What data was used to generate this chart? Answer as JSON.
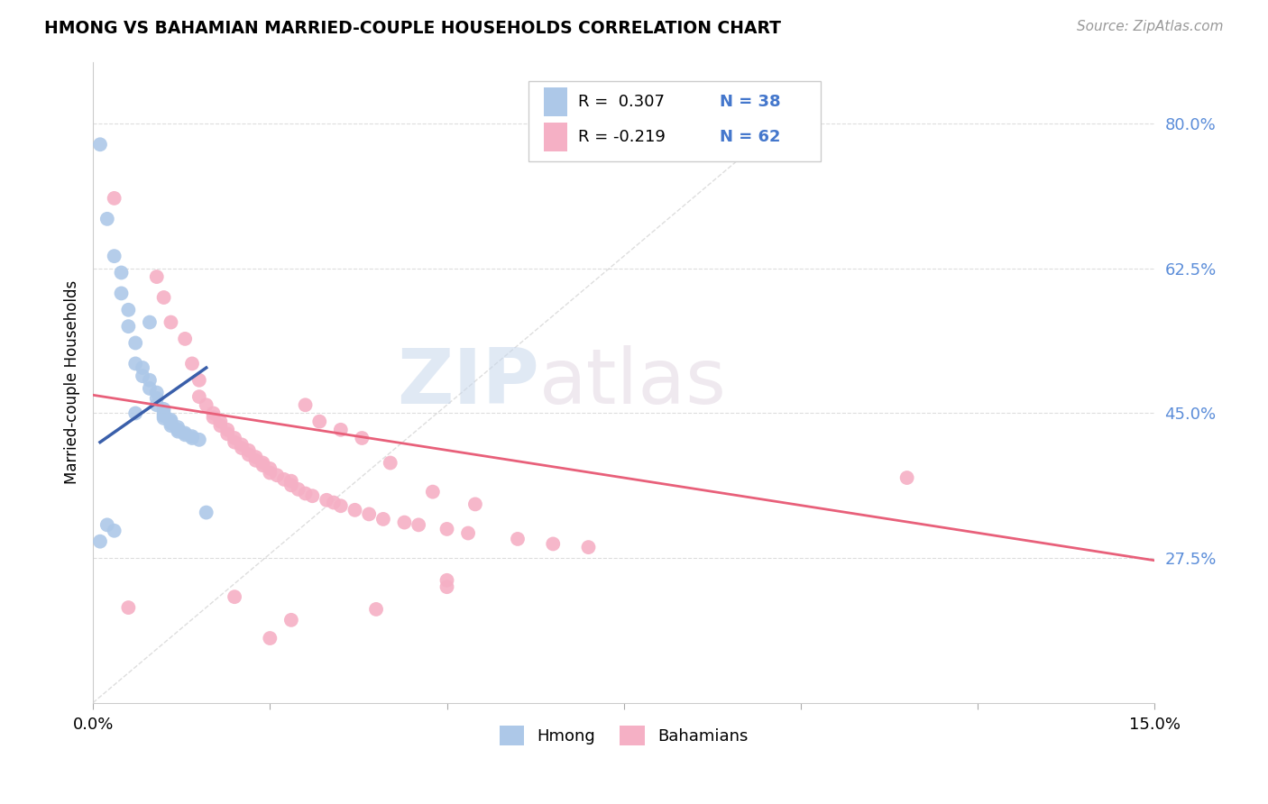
{
  "title": "HMONG VS BAHAMIAN MARRIED-COUPLE HOUSEHOLDS CORRELATION CHART",
  "source": "Source: ZipAtlas.com",
  "ylabel": "Married-couple Households",
  "ytick_labels": [
    "27.5%",
    "45.0%",
    "62.5%",
    "80.0%"
  ],
  "ytick_values": [
    0.275,
    0.45,
    0.625,
    0.8
  ],
  "xmin": 0.0,
  "xmax": 0.15,
  "ymin": 0.1,
  "ymax": 0.875,
  "watermark_zip": "ZIP",
  "watermark_atlas": "atlas",
  "legend_blue_label": "Hmong",
  "legend_pink_label": "Bahamians",
  "legend_R_blue": "R =  0.307",
  "legend_N_blue": "N = 38",
  "legend_R_pink": "R = -0.219",
  "legend_N_pink": "N = 62",
  "blue_color": "#adc8e8",
  "pink_color": "#f5b0c5",
  "blue_line_color": "#3a5faa",
  "pink_line_color": "#e8607a",
  "blue_scatter": [
    [
      0.001,
      0.775
    ],
    [
      0.002,
      0.685
    ],
    [
      0.003,
      0.64
    ],
    [
      0.004,
      0.62
    ],
    [
      0.004,
      0.595
    ],
    [
      0.005,
      0.575
    ],
    [
      0.005,
      0.555
    ],
    [
      0.006,
      0.535
    ],
    [
      0.006,
      0.51
    ],
    [
      0.007,
      0.505
    ],
    [
      0.007,
      0.495
    ],
    [
      0.008,
      0.49
    ],
    [
      0.008,
      0.48
    ],
    [
      0.009,
      0.475
    ],
    [
      0.009,
      0.468
    ],
    [
      0.009,
      0.46
    ],
    [
      0.01,
      0.455
    ],
    [
      0.01,
      0.45
    ],
    [
      0.01,
      0.447
    ],
    [
      0.01,
      0.444
    ],
    [
      0.011,
      0.442
    ],
    [
      0.011,
      0.44
    ],
    [
      0.011,
      0.438
    ],
    [
      0.011,
      0.435
    ],
    [
      0.012,
      0.433
    ],
    [
      0.012,
      0.43
    ],
    [
      0.012,
      0.428
    ],
    [
      0.013,
      0.426
    ],
    [
      0.013,
      0.424
    ],
    [
      0.014,
      0.422
    ],
    [
      0.014,
      0.42
    ],
    [
      0.015,
      0.418
    ],
    [
      0.016,
      0.33
    ],
    [
      0.002,
      0.315
    ],
    [
      0.003,
      0.308
    ],
    [
      0.001,
      0.295
    ],
    [
      0.008,
      0.56
    ],
    [
      0.006,
      0.45
    ]
  ],
  "pink_scatter": [
    [
      0.003,
      0.71
    ],
    [
      0.009,
      0.615
    ],
    [
      0.01,
      0.59
    ],
    [
      0.011,
      0.56
    ],
    [
      0.013,
      0.54
    ],
    [
      0.014,
      0.51
    ],
    [
      0.015,
      0.49
    ],
    [
      0.015,
      0.47
    ],
    [
      0.016,
      0.46
    ],
    [
      0.017,
      0.45
    ],
    [
      0.017,
      0.445
    ],
    [
      0.018,
      0.44
    ],
    [
      0.018,
      0.435
    ],
    [
      0.019,
      0.43
    ],
    [
      0.019,
      0.425
    ],
    [
      0.02,
      0.42
    ],
    [
      0.02,
      0.415
    ],
    [
      0.021,
      0.412
    ],
    [
      0.021,
      0.408
    ],
    [
      0.022,
      0.405
    ],
    [
      0.022,
      0.4
    ],
    [
      0.023,
      0.397
    ],
    [
      0.023,
      0.393
    ],
    [
      0.024,
      0.39
    ],
    [
      0.024,
      0.387
    ],
    [
      0.025,
      0.383
    ],
    [
      0.025,
      0.378
    ],
    [
      0.026,
      0.375
    ],
    [
      0.027,
      0.37
    ],
    [
      0.028,
      0.368
    ],
    [
      0.028,
      0.363
    ],
    [
      0.029,
      0.358
    ],
    [
      0.03,
      0.353
    ],
    [
      0.031,
      0.35
    ],
    [
      0.033,
      0.345
    ],
    [
      0.034,
      0.342
    ],
    [
      0.035,
      0.338
    ],
    [
      0.037,
      0.333
    ],
    [
      0.039,
      0.328
    ],
    [
      0.041,
      0.322
    ],
    [
      0.044,
      0.318
    ],
    [
      0.046,
      0.315
    ],
    [
      0.05,
      0.31
    ],
    [
      0.053,
      0.305
    ],
    [
      0.06,
      0.298
    ],
    [
      0.065,
      0.292
    ],
    [
      0.07,
      0.288
    ],
    [
      0.005,
      0.215
    ],
    [
      0.02,
      0.228
    ],
    [
      0.025,
      0.178
    ],
    [
      0.028,
      0.2
    ],
    [
      0.04,
      0.213
    ],
    [
      0.05,
      0.248
    ],
    [
      0.05,
      0.24
    ],
    [
      0.115,
      0.372
    ],
    [
      0.032,
      0.44
    ],
    [
      0.035,
      0.43
    ],
    [
      0.038,
      0.42
    ],
    [
      0.042,
      0.39
    ],
    [
      0.048,
      0.355
    ],
    [
      0.054,
      0.34
    ],
    [
      0.03,
      0.46
    ]
  ],
  "blue_line_x": [
    0.001,
    0.016
  ],
  "blue_line_y": [
    0.415,
    0.505
  ],
  "pink_line_x": [
    0.0,
    0.15
  ],
  "pink_line_y": [
    0.472,
    0.272
  ],
  "diagonal_line_x": [
    0.0,
    0.1
  ],
  "diagonal_line_y": [
    0.1,
    0.82
  ]
}
